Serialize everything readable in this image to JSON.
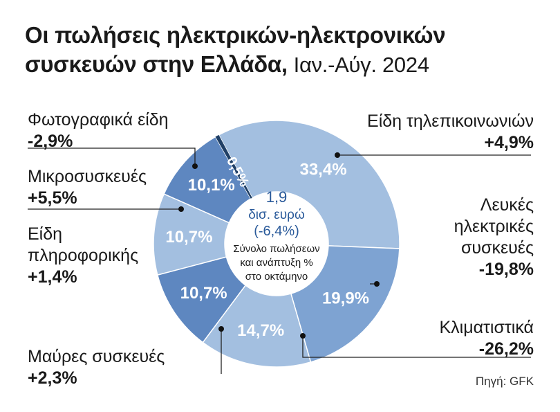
{
  "title": {
    "main": "Οι πωλήσεις ηλεκτρικών-ηλεκτρονικών συσκευών στην Ελλάδα,",
    "period": "Ιαν.-Αύγ. 2024"
  },
  "center": {
    "total": "1,9",
    "unit": "δισ. ευρώ",
    "change": "(-6,4%)",
    "caption_1": "Σύνολο πωλήσεων",
    "caption_2": "και ανάπτυξη %",
    "caption_3": "στο οκτάμηνο"
  },
  "source": "Πηγή: GFK",
  "colors": {
    "light": "#a3bfe0",
    "mid": "#7ea3d2",
    "dark": "#5e87c0",
    "thin_slice": "#1f3f66",
    "text_dark": "#2a5a9a"
  },
  "chart_data": {
    "type": "pie",
    "variant": "donut",
    "unit": "%",
    "slices": [
      {
        "category": "Είδη τηλεπικοινωνιών",
        "share": 33.4,
        "share_label": "33,4%",
        "change_label": "+4,9%",
        "color": "#a3bfe0"
      },
      {
        "category": "Λευκές ηλεκτρικές συσκευές",
        "share": 19.9,
        "share_label": "19,9%",
        "change_label": "-19,8%",
        "color": "#7ea3d2"
      },
      {
        "category": "Κλιματιστικά",
        "share": 14.7,
        "share_label": "14,7%",
        "change_label": "-26,2%",
        "color": "#a3bfe0"
      },
      {
        "category": "Μαύρες συσκευές",
        "share": 10.7,
        "share_label": "10,7%",
        "change_label": "+2,3%",
        "color": "#5e87c0"
      },
      {
        "category": "Είδη πληροφορικής",
        "share": 10.7,
        "share_label": "10,7%",
        "change_label": "+1,4%",
        "color": "#a3bfe0"
      },
      {
        "category": "Μικροσυσκευές",
        "share": 10.1,
        "share_label": "10,1%",
        "change_label": "+5,5%",
        "color": "#5e87c0"
      },
      {
        "category": "Φωτογραφικά είδη",
        "share": 0.5,
        "share_label": "0,5%",
        "change_label": "-2,9%",
        "color": "#1f3f66"
      }
    ]
  }
}
